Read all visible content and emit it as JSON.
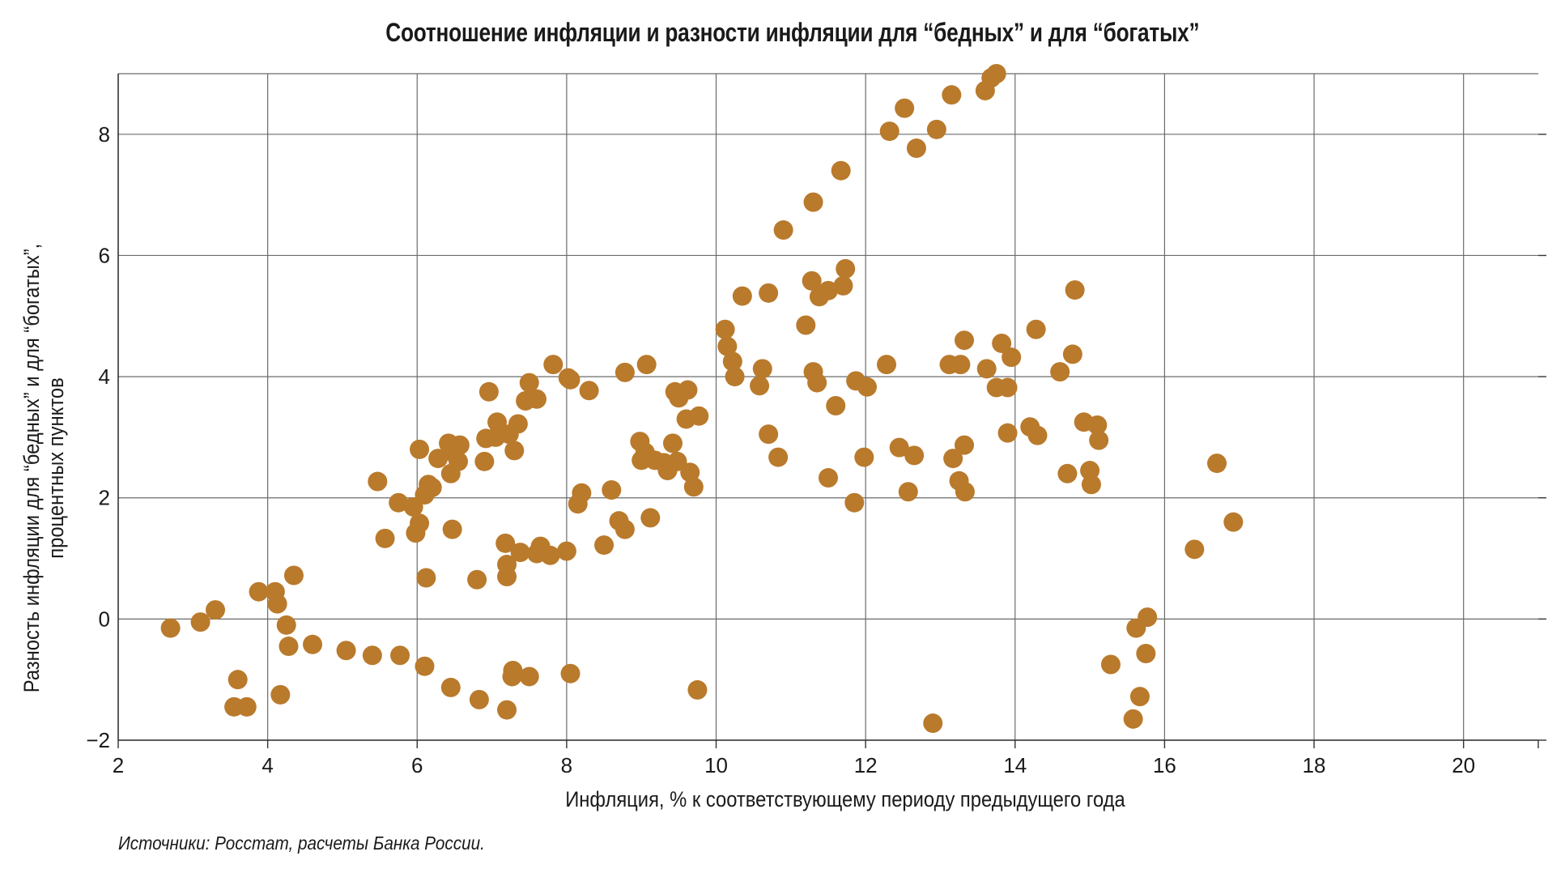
{
  "chart_data": {
    "type": "scatter",
    "title": "Соотношение инфляции и разности инфляции для “бедных” и для “богатых”",
    "xlabel": "Инфляция, % к соответствующему периоду предыдущего года",
    "ylabel_line1": "Разность инфляции для “бедных” и для “богатых”,",
    "ylabel_line2": "процентных пунктов",
    "xlim": [
      2,
      21
    ],
    "ylim": [
      -2,
      9
    ],
    "x_ticks": [
      2,
      4,
      6,
      8,
      10,
      12,
      14,
      16,
      18,
      20
    ],
    "y_ticks": [
      -2,
      0,
      2,
      4,
      6,
      8
    ],
    "x_tick_labels": [
      "2",
      "4",
      "6",
      "8",
      "10",
      "12",
      "14",
      "16",
      "18",
      "20"
    ],
    "y_tick_labels": [
      "−2",
      "0",
      "2",
      "4",
      "6",
      "8"
    ],
    "grid": true,
    "marker_color": "#B97A2C",
    "points": [
      {
        "x": 2.7,
        "y": -0.15
      },
      {
        "x": 3.1,
        "y": -0.05
      },
      {
        "x": 3.3,
        "y": 0.15
      },
      {
        "x": 3.55,
        "y": -1.45
      },
      {
        "x": 3.6,
        "y": -1.0
      },
      {
        "x": 3.72,
        "y": -1.45
      },
      {
        "x": 3.88,
        "y": 0.45
      },
      {
        "x": 4.1,
        "y": 0.45
      },
      {
        "x": 4.13,
        "y": 0.25
      },
      {
        "x": 4.17,
        "y": -1.25
      },
      {
        "x": 4.25,
        "y": -0.1
      },
      {
        "x": 4.28,
        "y": -0.45
      },
      {
        "x": 4.35,
        "y": 0.72
      },
      {
        "x": 4.6,
        "y": -0.42
      },
      {
        "x": 5.05,
        "y": -0.52
      },
      {
        "x": 5.4,
        "y": -0.6
      },
      {
        "x": 5.47,
        "y": 2.27
      },
      {
        "x": 5.57,
        "y": 1.33
      },
      {
        "x": 5.75,
        "y": 1.92
      },
      {
        "x": 5.77,
        "y": -0.6
      },
      {
        "x": 5.95,
        "y": 1.85
      },
      {
        "x": 5.98,
        "y": 1.42
      },
      {
        "x": 6.03,
        "y": 1.58
      },
      {
        "x": 6.03,
        "y": 2.8
      },
      {
        "x": 6.1,
        "y": 2.05
      },
      {
        "x": 6.12,
        "y": 0.68
      },
      {
        "x": 6.1,
        "y": -0.78
      },
      {
        "x": 6.15,
        "y": 2.22
      },
      {
        "x": 6.2,
        "y": 2.17
      },
      {
        "x": 6.28,
        "y": 2.65
      },
      {
        "x": 6.42,
        "y": 2.9
      },
      {
        "x": 6.45,
        "y": 2.4
      },
      {
        "x": 6.47,
        "y": 1.48
      },
      {
        "x": 6.48,
        "y": 2.75
      },
      {
        "x": 6.55,
        "y": 2.6
      },
      {
        "x": 6.57,
        "y": 2.87
      },
      {
        "x": 6.45,
        "y": -1.13
      },
      {
        "x": 6.8,
        "y": 0.65
      },
      {
        "x": 6.83,
        "y": -1.33
      },
      {
        "x": 6.9,
        "y": 2.6
      },
      {
        "x": 6.92,
        "y": 2.98
      },
      {
        "x": 6.96,
        "y": 3.75
      },
      {
        "x": 7.05,
        "y": 3.0
      },
      {
        "x": 7.07,
        "y": 3.25
      },
      {
        "x": 7.18,
        "y": 1.25
      },
      {
        "x": 7.2,
        "y": 0.9
      },
      {
        "x": 7.2,
        "y": 0.7
      },
      {
        "x": 7.2,
        "y": -1.5
      },
      {
        "x": 7.23,
        "y": 3.05
      },
      {
        "x": 7.27,
        "y": -0.95
      },
      {
        "x": 7.28,
        "y": -0.85
      },
      {
        "x": 7.3,
        "y": 2.78
      },
      {
        "x": 7.35,
        "y": 3.22
      },
      {
        "x": 7.38,
        "y": 1.1
      },
      {
        "x": 7.45,
        "y": 3.6
      },
      {
        "x": 7.5,
        "y": -0.95
      },
      {
        "x": 7.5,
        "y": 3.9
      },
      {
        "x": 7.6,
        "y": 3.63
      },
      {
        "x": 7.6,
        "y": 1.08
      },
      {
        "x": 7.65,
        "y": 1.2
      },
      {
        "x": 7.78,
        "y": 1.05
      },
      {
        "x": 7.82,
        "y": 4.2
      },
      {
        "x": 8.0,
        "y": 1.12
      },
      {
        "x": 8.02,
        "y": 3.98
      },
      {
        "x": 8.05,
        "y": 3.95
      },
      {
        "x": 8.05,
        "y": -0.9
      },
      {
        "x": 8.15,
        "y": 1.9
      },
      {
        "x": 8.2,
        "y": 2.08
      },
      {
        "x": 8.3,
        "y": 3.77
      },
      {
        "x": 8.5,
        "y": 1.22
      },
      {
        "x": 8.6,
        "y": 2.13
      },
      {
        "x": 8.7,
        "y": 1.62
      },
      {
        "x": 8.78,
        "y": 1.48
      },
      {
        "x": 8.78,
        "y": 4.07
      },
      {
        "x": 8.98,
        "y": 2.93
      },
      {
        "x": 9.0,
        "y": 2.62
      },
      {
        "x": 9.05,
        "y": 2.75
      },
      {
        "x": 9.07,
        "y": 4.2
      },
      {
        "x": 9.12,
        "y": 1.67
      },
      {
        "x": 9.18,
        "y": 2.62
      },
      {
        "x": 9.3,
        "y": 2.58
      },
      {
        "x": 9.35,
        "y": 2.45
      },
      {
        "x": 9.42,
        "y": 2.9
      },
      {
        "x": 9.45,
        "y": 3.75
      },
      {
        "x": 9.5,
        "y": 3.65
      },
      {
        "x": 9.48,
        "y": 2.6
      },
      {
        "x": 9.6,
        "y": 3.3
      },
      {
        "x": 9.62,
        "y": 3.78
      },
      {
        "x": 9.65,
        "y": 2.42
      },
      {
        "x": 9.7,
        "y": 2.18
      },
      {
        "x": 9.77,
        "y": 3.35
      },
      {
        "x": 9.75,
        "y": -1.17
      },
      {
        "x": 10.12,
        "y": 4.78
      },
      {
        "x": 10.15,
        "y": 4.5
      },
      {
        "x": 10.22,
        "y": 4.25
      },
      {
        "x": 10.25,
        "y": 4.0
      },
      {
        "x": 10.35,
        "y": 5.33
      },
      {
        "x": 10.58,
        "y": 3.85
      },
      {
        "x": 10.62,
        "y": 4.13
      },
      {
        "x": 10.7,
        "y": 5.38
      },
      {
        "x": 10.7,
        "y": 3.05
      },
      {
        "x": 10.83,
        "y": 2.67
      },
      {
        "x": 10.9,
        "y": 6.42
      },
      {
        "x": 11.2,
        "y": 4.85
      },
      {
        "x": 11.28,
        "y": 5.58
      },
      {
        "x": 11.3,
        "y": 6.88
      },
      {
        "x": 11.3,
        "y": 4.08
      },
      {
        "x": 11.35,
        "y": 3.9
      },
      {
        "x": 11.38,
        "y": 5.32
      },
      {
        "x": 11.5,
        "y": 5.42
      },
      {
        "x": 11.5,
        "y": 2.33
      },
      {
        "x": 11.6,
        "y": 3.52
      },
      {
        "x": 11.67,
        "y": 7.4
      },
      {
        "x": 11.7,
        "y": 5.5
      },
      {
        "x": 11.73,
        "y": 5.78
      },
      {
        "x": 11.85,
        "y": 1.92
      },
      {
        "x": 11.87,
        "y": 3.93
      },
      {
        "x": 11.98,
        "y": 2.67
      },
      {
        "x": 12.02,
        "y": 3.83
      },
      {
        "x": 12.28,
        "y": 4.2
      },
      {
        "x": 12.32,
        "y": 8.05
      },
      {
        "x": 12.45,
        "y": 2.83
      },
      {
        "x": 12.52,
        "y": 8.43
      },
      {
        "x": 12.57,
        "y": 2.1
      },
      {
        "x": 12.65,
        "y": 2.7
      },
      {
        "x": 12.68,
        "y": 7.77
      },
      {
        "x": 12.9,
        "y": -1.72
      },
      {
        "x": 12.95,
        "y": 8.08
      },
      {
        "x": 13.12,
        "y": 4.2
      },
      {
        "x": 13.15,
        "y": 8.65
      },
      {
        "x": 13.17,
        "y": 2.65
      },
      {
        "x": 13.25,
        "y": 2.28
      },
      {
        "x": 13.27,
        "y": 4.2
      },
      {
        "x": 13.32,
        "y": 2.87
      },
      {
        "x": 13.32,
        "y": 4.6
      },
      {
        "x": 13.33,
        "y": 2.1
      },
      {
        "x": 13.6,
        "y": 8.72
      },
      {
        "x": 13.62,
        "y": 4.13
      },
      {
        "x": 13.68,
        "y": 8.93
      },
      {
        "x": 13.75,
        "y": 9.0
      },
      {
        "x": 13.75,
        "y": 3.82
      },
      {
        "x": 13.82,
        "y": 4.55
      },
      {
        "x": 13.9,
        "y": 3.82
      },
      {
        "x": 13.9,
        "y": 3.07
      },
      {
        "x": 13.95,
        "y": 4.32
      },
      {
        "x": 14.2,
        "y": 3.17
      },
      {
        "x": 14.28,
        "y": 4.78
      },
      {
        "x": 14.3,
        "y": 3.03
      },
      {
        "x": 14.6,
        "y": 4.08
      },
      {
        "x": 14.7,
        "y": 2.4
      },
      {
        "x": 14.77,
        "y": 4.37
      },
      {
        "x": 14.8,
        "y": 5.43
      },
      {
        "x": 14.92,
        "y": 3.25
      },
      {
        "x": 15.0,
        "y": 2.45
      },
      {
        "x": 15.02,
        "y": 2.22
      },
      {
        "x": 15.1,
        "y": 3.2
      },
      {
        "x": 15.12,
        "y": 2.95
      },
      {
        "x": 15.28,
        "y": -0.75
      },
      {
        "x": 15.58,
        "y": -1.65
      },
      {
        "x": 15.62,
        "y": -0.15
      },
      {
        "x": 15.67,
        "y": -1.28
      },
      {
        "x": 15.75,
        "y": -0.57
      },
      {
        "x": 15.77,
        "y": 0.03
      },
      {
        "x": 16.4,
        "y": 1.15
      },
      {
        "x": 16.7,
        "y": 2.57
      },
      {
        "x": 16.92,
        "y": 1.6
      }
    ]
  },
  "footer": {
    "source": "Источники: Росстат, расчеты Банка России."
  }
}
